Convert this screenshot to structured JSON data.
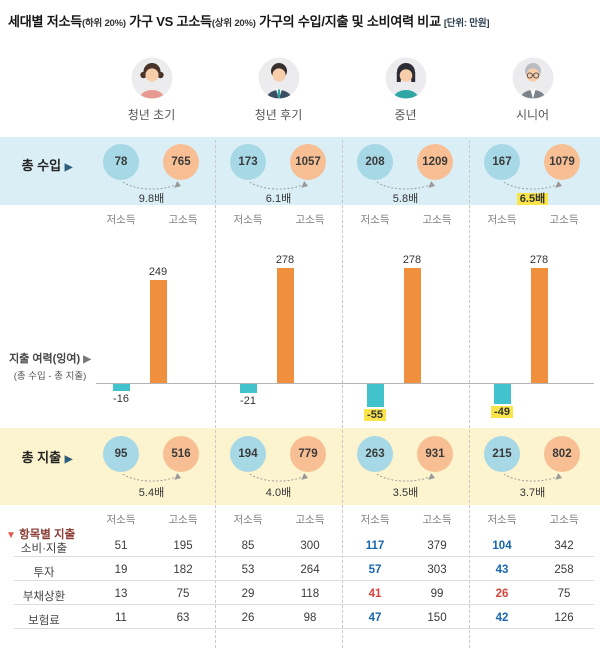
{
  "title": {
    "part1": "세대별 저소득",
    "sub1": "(하위 20%)",
    "part2": " 가구 VS 고소득",
    "sub2": "(상위 20%)",
    "part3": " 가구의 수입/지출 및 소비여력 비교",
    "unit": "[단위: 만원]"
  },
  "labels": {
    "low": "저소득",
    "high": "고소득"
  },
  "left": {
    "income": "총 수입",
    "arrow": "▶",
    "surplus_line1": "지출 여력(잉여)",
    "surplus_line2": "(총 수입 - 총 지출)",
    "expense": "총 지출",
    "items_marker": "▼",
    "items_header": "항목별 지출",
    "item_rows": [
      "소비·지출",
      "투자",
      "부채상환",
      "보험료"
    ]
  },
  "columns": [
    {
      "name": "청년 초기",
      "income": {
        "low": 78,
        "high": 765,
        "ratio": "9.8배"
      },
      "surplus": {
        "low": -16,
        "high": 249
      },
      "expense": {
        "low": 95,
        "high": 516,
        "ratio": "5.4배"
      },
      "items": [
        {
          "low": 51,
          "high": 195
        },
        {
          "low": 19,
          "high": 182
        },
        {
          "low": 13,
          "high": 75
        },
        {
          "low": 11,
          "high": 63
        }
      ]
    },
    {
      "name": "청년 후기",
      "income": {
        "low": 173,
        "high": 1057,
        "ratio": "6.1배"
      },
      "surplus": {
        "low": -21,
        "high": 278
      },
      "expense": {
        "low": 194,
        "high": 779,
        "ratio": "4.0배"
      },
      "items": [
        {
          "low": 85,
          "high": 300
        },
        {
          "low": 53,
          "high": 264
        },
        {
          "low": 29,
          "high": 118
        },
        {
          "low": 26,
          "high": 98
        }
      ]
    },
    {
      "name": "중년",
      "income": {
        "low": 208,
        "high": 1209,
        "ratio": "5.8배"
      },
      "surplus": {
        "low": -55,
        "high": 278
      },
      "expense": {
        "low": 263,
        "high": 931,
        "ratio": "3.5배"
      },
      "items": [
        {
          "low": 117,
          "high": 379
        },
        {
          "low": 57,
          "high": 303
        },
        {
          "low": 41,
          "high": 99
        },
        {
          "low": 47,
          "high": 150
        }
      ]
    },
    {
      "name": "시니어",
      "income": {
        "low": 167,
        "high": 1079,
        "ratio": "6.5배"
      },
      "surplus": {
        "low": -49,
        "high": 278
      },
      "expense": {
        "low": 215,
        "high": 802,
        "ratio": "3.7배"
      },
      "items": [
        {
          "low": 104,
          "high": 342
        },
        {
          "low": 43,
          "high": 258
        },
        {
          "low": 26,
          "high": 75
        },
        {
          "low": 42,
          "high": 126
        }
      ]
    }
  ],
  "colors": {
    "low_circle": "#a6d8e6",
    "high_circle": "#f7bf93",
    "low_bar": "#41c2cd",
    "high_bar": "#f0903f",
    "income_band": "#daeef6",
    "expense_band": "#fcf4cf",
    "highlight": "#f9e54a",
    "accent_blue": "#1766ae",
    "accent_red": "#d8443c"
  },
  "chart_data": {
    "type": "bar",
    "title": "세대별 저소득(하위 20%) 가구 VS 고소득(상위 20%) 가구의 수입/지출 및 소비여력 비교",
    "unit": "만원",
    "categories": [
      "청년 초기",
      "청년 후기",
      "중년",
      "시니어"
    ],
    "series": [
      {
        "name": "총 수입(저소득)",
        "values": [
          78,
          173,
          208,
          167
        ]
      },
      {
        "name": "총 수입(고소득)",
        "values": [
          765,
          1057,
          1209,
          1079
        ]
      },
      {
        "name": "수입 배율",
        "values": [
          "9.8배",
          "6.1배",
          "5.8배",
          "6.5배"
        ]
      },
      {
        "name": "지출 여력(잉여)(저소득)",
        "values": [
          -16,
          -21,
          -55,
          -49
        ]
      },
      {
        "name": "지출 여력(잉여)(고소득)",
        "values": [
          249,
          278,
          278,
          278
        ]
      },
      {
        "name": "총 지출(저소득)",
        "values": [
          95,
          194,
          263,
          215
        ]
      },
      {
        "name": "총 지출(고소득)",
        "values": [
          516,
          779,
          931,
          802
        ]
      },
      {
        "name": "지출 배율",
        "values": [
          "5.4배",
          "4.0배",
          "3.5배",
          "3.7배"
        ]
      },
      {
        "name": "소비·지출(저소득)",
        "values": [
          51,
          85,
          117,
          104
        ]
      },
      {
        "name": "소비·지출(고소득)",
        "values": [
          195,
          300,
          379,
          342
        ]
      },
      {
        "name": "투자(저소득)",
        "values": [
          19,
          53,
          57,
          43
        ]
      },
      {
        "name": "투자(고소득)",
        "values": [
          182,
          264,
          303,
          258
        ]
      },
      {
        "name": "부채상환(저소득)",
        "values": [
          13,
          29,
          41,
          26
        ]
      },
      {
        "name": "부채상환(고소득)",
        "values": [
          75,
          118,
          99,
          75
        ]
      },
      {
        "name": "보험료(저소득)",
        "values": [
          11,
          26,
          47,
          42
        ]
      },
      {
        "name": "보험료(고소득)",
        "values": [
          63,
          98,
          150,
          126
        ]
      }
    ],
    "bar_axis": {
      "baseline": 0,
      "range": [
        -60,
        300
      ]
    },
    "grid": false,
    "legend_position": "none"
  }
}
